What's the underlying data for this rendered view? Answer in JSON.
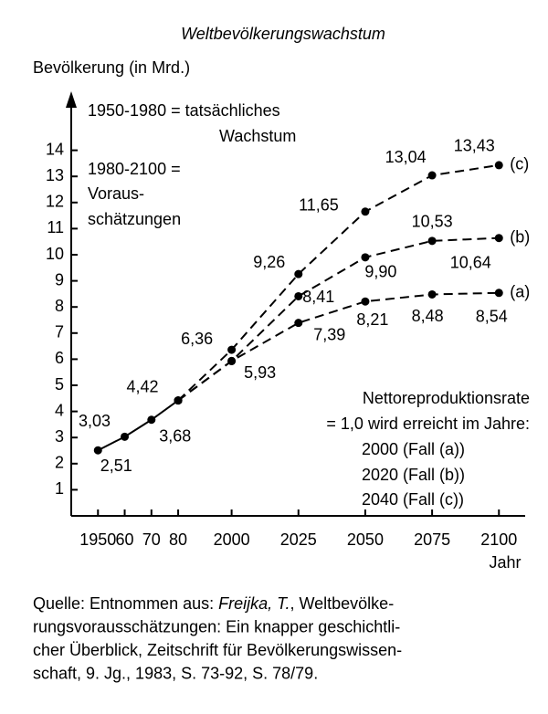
{
  "chart_data": {
    "type": "line",
    "title": "Weltbevölkerungswachstum",
    "y_label": "Bevölkerung (in Mrd.)",
    "x_label": "Jahr",
    "xlim": [
      1940,
      2108
    ],
    "ylim": [
      0,
      15.9
    ],
    "xticks": [
      1950,
      {
        "value": 1960,
        "label": "60"
      },
      {
        "value": 1970,
        "label": "70"
      },
      {
        "value": 1980,
        "label": "80"
      },
      2000,
      2025,
      2050,
      2075,
      2100
    ],
    "yticks": [
      1,
      2,
      3,
      4,
      5,
      6,
      7,
      8,
      9,
      10,
      11,
      12,
      13,
      14
    ],
    "grid": false,
    "series": [
      {
        "color": "#000000",
        "style": "solid",
        "x": [
          1950,
          1960,
          1970,
          1980
        ],
        "values": [
          2.51,
          3.03,
          3.68,
          4.42
        ],
        "value_labels": [
          "2,51",
          "3,03",
          "3,68",
          "4,42"
        ]
      },
      {
        "name": "(a)",
        "color": "#000000",
        "style": "dashed",
        "x": [
          1980,
          2000,
          2025,
          2050,
          2075,
          2100
        ],
        "values": [
          4.42,
          5.93,
          7.39,
          8.21,
          8.48,
          8.54
        ],
        "value_labels": [
          null,
          "5,93",
          "7,39",
          "8,21",
          "8,48",
          "8,54"
        ]
      },
      {
        "name": "(b)",
        "color": "#000000",
        "style": "dashed",
        "x": [
          1980,
          2000,
          2025,
          2050,
          2075,
          2100
        ],
        "values": [
          4.42,
          5.93,
          8.41,
          9.9,
          10.53,
          10.64
        ],
        "value_labels": [
          null,
          null,
          "8,41",
          "9,90",
          "10,53",
          "10,64"
        ]
      },
      {
        "name": "(c)",
        "color": "#000000",
        "style": "dashed",
        "x": [
          1980,
          2000,
          2025,
          2050,
          2075,
          2100
        ],
        "values": [
          4.42,
          6.36,
          9.26,
          11.65,
          13.04,
          13.43
        ],
        "value_labels": [
          null,
          "6,36",
          "9,26",
          "11,65",
          "13,04",
          "13,43"
        ]
      }
    ],
    "annotations": [
      [
        "1950-1980 = tatsächliches",
        "Wachstum"
      ],
      [
        "1980-2100 =",
        "Voraus-",
        "schätzungen"
      ],
      [
        "Nettoreproduktionsrate",
        "= 1,0 wird  erreicht im Jahre:",
        "2000 (Fall (a))",
        "2020 (Fall (b))",
        "2040 (Fall (c))"
      ]
    ],
    "source": [
      [
        "Quelle:  Entnommen aus: ",
        "Freijka, T.",
        ", Weltbevölke-"
      ],
      [
        "rungsvorausschätzungen: Ein knapper geschichtli-"
      ],
      [
        "cher Überblick, Zeitschrift für Bevölkerungswissen-"
      ],
      [
        "schaft, 9. Jg., 1983, S. 73-92, S. 78/79."
      ]
    ]
  }
}
